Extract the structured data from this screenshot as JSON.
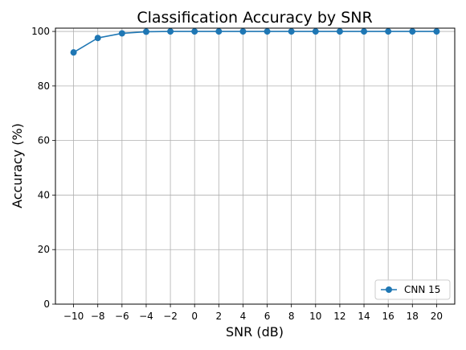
{
  "chart_data": {
    "type": "line",
    "title": "Classification Accuracy by SNR",
    "xlabel": "SNR (dB)",
    "ylabel": "Accuracy (%)",
    "x": [
      -10,
      -8,
      -6,
      -4,
      -2,
      0,
      2,
      4,
      6,
      8,
      10,
      12,
      14,
      16,
      18,
      20
    ],
    "x_tick_labels": [
      "−10",
      "−8",
      "−6",
      "−4",
      "−2",
      "0",
      "2",
      "4",
      "6",
      "8",
      "10",
      "12",
      "14",
      "16",
      "18",
      "20"
    ],
    "xlim": [
      -11.5,
      21.5
    ],
    "ylim": [
      0,
      101.2
    ],
    "y_ticks": [
      0,
      20,
      40,
      60,
      80,
      100
    ],
    "y_tick_labels": [
      "0",
      "20",
      "40",
      "60",
      "80",
      "100"
    ],
    "grid": true,
    "legend_position": "lower-right",
    "series": [
      {
        "name": "CNN 15",
        "color": "#1f77b4",
        "marker": "circle",
        "values": [
          92.3,
          97.6,
          99.3,
          99.9,
          100,
          100,
          100,
          100,
          100,
          100,
          100,
          100,
          100,
          100,
          100,
          100
        ]
      }
    ]
  }
}
